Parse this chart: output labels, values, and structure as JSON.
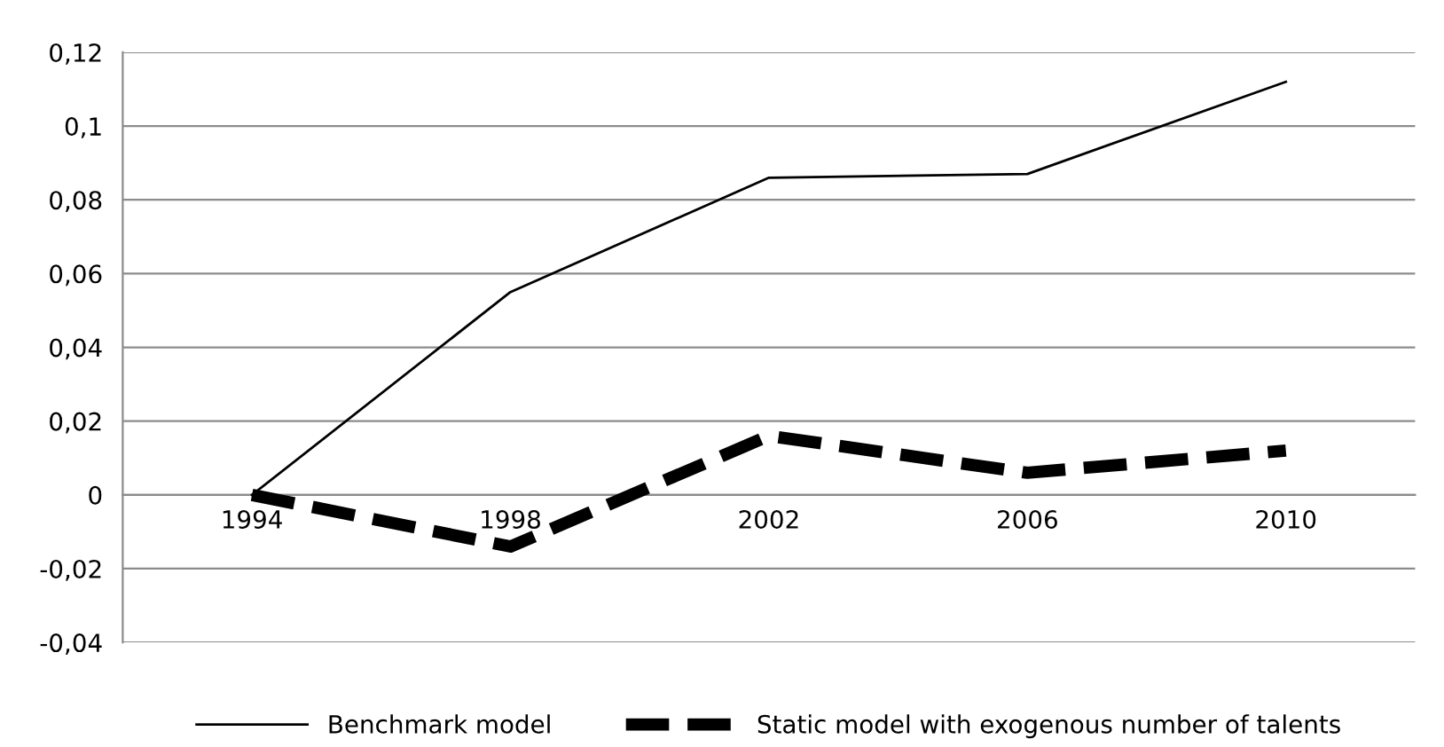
{
  "chart_data": {
    "type": "line",
    "categories": [
      "1994",
      "1998",
      "2002",
      "2006",
      "2010"
    ],
    "series": [
      {
        "name": "Benchmark model",
        "color": "#000000",
        "line_style": "solid",
        "values": [
          0,
          0.055,
          0.086,
          0.087,
          0.112
        ]
      },
      {
        "name": "Static model with exogenous number of talents",
        "color": "#000000",
        "line_style": "dashed",
        "values": [
          0,
          -0.014,
          0.016,
          0.006,
          0.012
        ]
      }
    ],
    "ylim": [
      -0.04,
      0.12
    ],
    "yticks": [
      {
        "value": -0.04,
        "label": "-0,04"
      },
      {
        "value": -0.02,
        "label": "-0,02"
      },
      0,
      {
        "value": 0.02,
        "label": "0,02"
      },
      {
        "value": 0.04,
        "label": "0,04"
      },
      {
        "value": 0.06,
        "label": "0,06"
      },
      {
        "value": 0.08,
        "label": "0,08"
      },
      {
        "value": 0.1,
        "label": "0,1"
      },
      {
        "value": 0.12,
        "label": "0,12"
      }
    ],
    "grid": "y",
    "legend": "bottom",
    "marker": "none"
  }
}
